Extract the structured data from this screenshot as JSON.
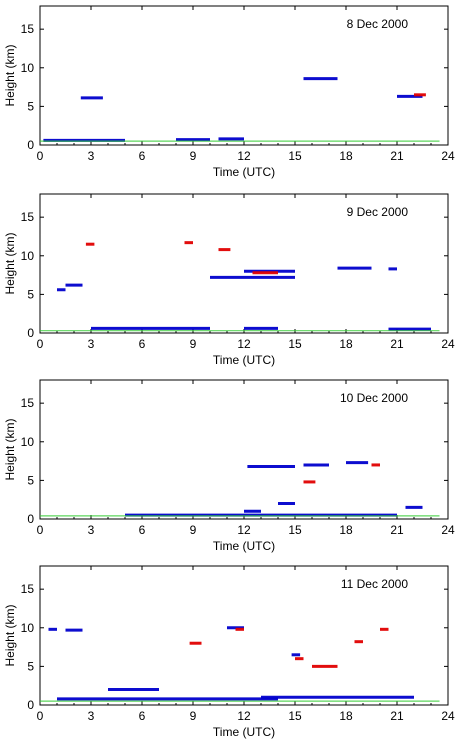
{
  "chart_data": [
    {
      "type": "scatter",
      "title": "8 Dec 2000",
      "xlabel": "Time (UTC)",
      "ylabel": "Height (km)",
      "xlim": [
        0,
        24
      ],
      "ylim": [
        0,
        18
      ],
      "xticks": [
        "0",
        "3",
        "6",
        "9",
        "12",
        "15",
        "18",
        "21",
        "24"
      ],
      "yticks": [
        "0",
        "5",
        "10",
        "15"
      ],
      "series": [
        {
          "color": "#0000cc",
          "segments": [
            [
              2.4,
              3.7,
              6.1
            ],
            [
              15.5,
              17.5,
              8.6
            ],
            [
              21.0,
              22.5,
              6.3
            ],
            [
              0.2,
              5.0,
              0.6
            ],
            [
              8.0,
              10.0,
              0.7
            ],
            [
              10.5,
              12.0,
              0.8
            ]
          ]
        },
        {
          "color": "#e00000",
          "segments": [
            [
              22.0,
              22.7,
              6.5
            ]
          ]
        },
        {
          "color": "#33cc33",
          "segments": [
            [
              0.0,
              23.5,
              0.5
            ]
          ]
        }
      ]
    },
    {
      "type": "scatter",
      "title": "9 Dec 2000",
      "xlabel": "Time (UTC)",
      "ylabel": "Height (km)",
      "xlim": [
        0,
        24
      ],
      "ylim": [
        0,
        18
      ],
      "xticks": [
        "0",
        "3",
        "6",
        "9",
        "12",
        "15",
        "18",
        "21",
        "24"
      ],
      "yticks": [
        "0",
        "5",
        "10",
        "15"
      ],
      "series": [
        {
          "color": "#0000cc",
          "segments": [
            [
              1.0,
              1.5,
              5.6
            ],
            [
              1.5,
              2.5,
              6.2
            ],
            [
              10.0,
              15.0,
              7.2
            ],
            [
              12.0,
              15.0,
              8.0
            ],
            [
              17.5,
              19.5,
              8.4
            ],
            [
              20.5,
              21.0,
              8.3
            ],
            [
              3.0,
              10.0,
              0.6
            ],
            [
              12.0,
              14.0,
              0.6
            ],
            [
              20.5,
              23.0,
              0.5
            ]
          ]
        },
        {
          "color": "#e00000",
          "segments": [
            [
              2.7,
              3.2,
              11.5
            ],
            [
              8.5,
              9.0,
              11.7
            ],
            [
              10.5,
              11.2,
              10.8
            ],
            [
              12.5,
              14.0,
              7.8
            ]
          ]
        },
        {
          "color": "#33cc33",
          "segments": [
            [
              0.0,
              23.5,
              0.3
            ]
          ]
        }
      ]
    },
    {
      "type": "scatter",
      "title": "10 Dec 2000",
      "xlabel": "Time (UTC)",
      "ylabel": "Height (km)",
      "xlim": [
        0,
        24
      ],
      "ylim": [
        0,
        18
      ],
      "xticks": [
        "0",
        "3",
        "6",
        "9",
        "12",
        "15",
        "18",
        "21",
        "24"
      ],
      "yticks": [
        "0",
        "5",
        "10",
        "15"
      ],
      "series": [
        {
          "color": "#0000cc",
          "segments": [
            [
              12.2,
              15.0,
              6.8
            ],
            [
              15.5,
              17.0,
              7.0
            ],
            [
              18.0,
              19.3,
              7.3
            ],
            [
              14.0,
              15.0,
              2.0
            ],
            [
              12.0,
              13.0,
              1.0
            ],
            [
              21.5,
              22.5,
              1.5
            ],
            [
              5.0,
              21.0,
              0.5
            ]
          ]
        },
        {
          "color": "#e00000",
          "segments": [
            [
              15.5,
              16.2,
              4.8
            ],
            [
              19.5,
              20.0,
              7.0
            ]
          ]
        },
        {
          "color": "#33cc33",
          "segments": [
            [
              0.0,
              23.5,
              0.4
            ]
          ]
        }
      ]
    },
    {
      "type": "scatter",
      "title": "11 Dec 2000",
      "xlabel": "Time (UTC)",
      "ylabel": "Height (km)",
      "xlim": [
        0,
        24
      ],
      "ylim": [
        0,
        18
      ],
      "xticks": [
        "0",
        "3",
        "6",
        "9",
        "12",
        "15",
        "18",
        "21",
        "24"
      ],
      "yticks": [
        "0",
        "5",
        "10",
        "15"
      ],
      "series": [
        {
          "color": "#0000cc",
          "segments": [
            [
              0.5,
              1.0,
              9.8
            ],
            [
              1.5,
              2.5,
              9.7
            ],
            [
              11.0,
              12.0,
              10.0
            ],
            [
              14.8,
              15.3,
              6.5
            ],
            [
              4.0,
              7.0,
              2.0
            ],
            [
              1.0,
              14.0,
              0.8
            ],
            [
              13.0,
              22.0,
              1.0
            ]
          ]
        },
        {
          "color": "#e00000",
          "segments": [
            [
              8.8,
              9.5,
              8.0
            ],
            [
              11.5,
              12.0,
              9.8
            ],
            [
              15.0,
              15.5,
              6.0
            ],
            [
              16.0,
              17.5,
              5.0
            ],
            [
              18.5,
              19.0,
              8.2
            ],
            [
              20.0,
              20.5,
              9.8
            ]
          ]
        },
        {
          "color": "#33cc33",
          "segments": [
            [
              0.0,
              23.5,
              0.5
            ]
          ]
        }
      ]
    }
  ]
}
